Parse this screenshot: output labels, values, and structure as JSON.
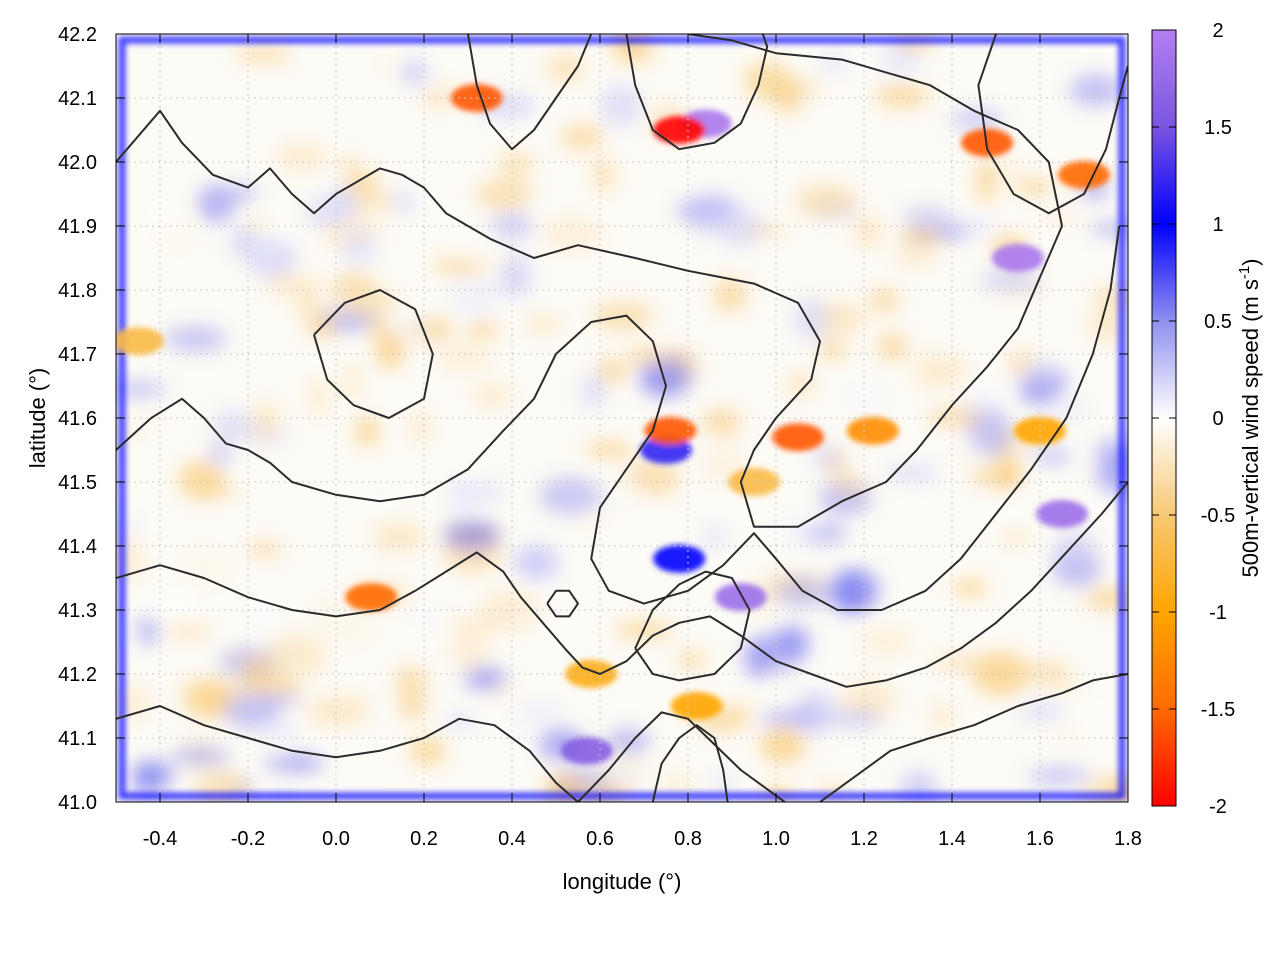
{
  "chart_data": {
    "type": "heatmap",
    "title": "",
    "xlabel": "longitude (°)",
    "ylabel": "latitude (°)",
    "xlim": [
      -0.5,
      1.8
    ],
    "ylim": [
      41.0,
      42.2
    ],
    "x_ticks": [
      "-0.4",
      "-0.2",
      "0.0",
      "0.2",
      "0.4",
      "0.6",
      "0.8",
      "1.0",
      "1.2",
      "1.4",
      "1.6",
      "1.8"
    ],
    "x_tick_values": [
      -0.4,
      -0.2,
      0.0,
      0.2,
      0.4,
      0.6,
      0.8,
      1.0,
      1.2,
      1.4,
      1.6,
      1.8
    ],
    "y_ticks": [
      "41.0",
      "41.1",
      "41.2",
      "41.3",
      "41.4",
      "41.5",
      "41.6",
      "41.7",
      "41.8",
      "41.9",
      "42.0",
      "42.1",
      "42.2"
    ],
    "y_tick_values": [
      41.0,
      41.1,
      41.2,
      41.3,
      41.4,
      41.5,
      41.6,
      41.7,
      41.8,
      41.9,
      42.0,
      42.1,
      42.2
    ],
    "grid": true,
    "colorbar": {
      "label_main": "500m-vertical wind speed (m s",
      "label_sup": "-1",
      "label_end": ")",
      "range": [
        -2,
        2
      ],
      "ticks": [
        "2",
        "1.5",
        "1",
        "0.5",
        "0",
        "-0.5",
        "-1",
        "-1.5",
        "-2"
      ],
      "tick_values": [
        2,
        1.5,
        1,
        0.5,
        0,
        -0.5,
        -1,
        -1.5,
        -2
      ],
      "colors": {
        "2": "#b37ff0",
        "1.5": "#7a55e0",
        "1": "#0000ff",
        "0.5": "#8f8fef",
        "0": "#ffffff",
        "-0.5": "#f7c874",
        "-1": "#ffa500",
        "-1.5": "#ff6a00",
        "-2": "#ff0000"
      }
    },
    "features": [
      {
        "kind": "updraft",
        "lon": 0.84,
        "lat": 42.06,
        "value": 1.9
      },
      {
        "kind": "updraft",
        "lon": 1.55,
        "lat": 41.85,
        "value": 1.9
      },
      {
        "kind": "updraft",
        "lon": 1.65,
        "lat": 41.45,
        "value": 1.8
      },
      {
        "kind": "updraft",
        "lon": 0.92,
        "lat": 41.32,
        "value": 1.8
      },
      {
        "kind": "updraft",
        "lon": 0.57,
        "lat": 41.08,
        "value": 1.6
      },
      {
        "kind": "updraft",
        "lon": 0.75,
        "lat": 41.55,
        "value": 1.2
      },
      {
        "kind": "updraft",
        "lon": 0.78,
        "lat": 41.38,
        "value": 1.0
      },
      {
        "kind": "downdraft",
        "lon": 0.78,
        "lat": 42.05,
        "value": -2.0
      },
      {
        "kind": "downdraft",
        "lon": 0.32,
        "lat": 42.1,
        "value": -1.6
      },
      {
        "kind": "downdraft",
        "lon": 1.7,
        "lat": 41.98,
        "value": -1.5
      },
      {
        "kind": "downdraft",
        "lon": 1.48,
        "lat": 42.03,
        "value": -1.6
      },
      {
        "kind": "downdraft",
        "lon": 0.76,
        "lat": 41.58,
        "value": -1.6
      },
      {
        "kind": "downdraft",
        "lon": 1.05,
        "lat": 41.57,
        "value": -1.6
      },
      {
        "kind": "downdraft",
        "lon": 0.95,
        "lat": 41.5,
        "value": -0.7
      },
      {
        "kind": "downdraft",
        "lon": 1.6,
        "lat": 41.58,
        "value": -1.0
      },
      {
        "kind": "downdraft",
        "lon": 1.22,
        "lat": 41.58,
        "value": -1.2
      },
      {
        "kind": "downdraft",
        "lon": 0.08,
        "lat": 41.32,
        "value": -1.5
      },
      {
        "kind": "downdraft",
        "lon": 0.82,
        "lat": 41.15,
        "value": -1.0
      },
      {
        "kind": "downdraft",
        "lon": 0.58,
        "lat": 41.2,
        "value": -0.9
      },
      {
        "kind": "downdraft",
        "lon": -0.45,
        "lat": 41.72,
        "value": -0.7
      }
    ],
    "contours": [
      [
        [
          -0.5,
          42.0
        ],
        [
          -0.4,
          42.08
        ],
        [
          -0.35,
          42.03
        ],
        [
          -0.28,
          41.98
        ],
        [
          -0.2,
          41.96
        ],
        [
          -0.15,
          41.99
        ],
        [
          -0.1,
          41.95
        ],
        [
          -0.05,
          41.92
        ],
        [
          0.0,
          41.95
        ],
        [
          0.05,
          41.97
        ],
        [
          0.1,
          41.99
        ],
        [
          0.15,
          41.98
        ],
        [
          0.2,
          41.96
        ],
        [
          0.25,
          41.92
        ],
        [
          0.35,
          41.88
        ],
        [
          0.45,
          41.85
        ],
        [
          0.55,
          41.87
        ],
        [
          0.68,
          41.85
        ],
        [
          0.8,
          41.83
        ],
        [
          0.95,
          41.81
        ],
        [
          1.05,
          41.78
        ],
        [
          1.1,
          41.72
        ],
        [
          1.08,
          41.66
        ],
        [
          1.0,
          41.6
        ],
        [
          0.95,
          41.55
        ],
        [
          0.92,
          41.5
        ],
        [
          0.95,
          41.43
        ],
        [
          1.05,
          41.43
        ],
        [
          1.15,
          41.47
        ],
        [
          1.25,
          41.5
        ],
        [
          1.32,
          41.55
        ],
        [
          1.4,
          41.62
        ],
        [
          1.48,
          41.68
        ],
        [
          1.55,
          41.74
        ],
        [
          1.6,
          41.82
        ],
        [
          1.65,
          41.9
        ],
        [
          1.62,
          42.0
        ],
        [
          1.55,
          42.05
        ],
        [
          1.45,
          42.08
        ],
        [
          1.35,
          42.12
        ],
        [
          1.25,
          42.14
        ],
        [
          1.15,
          42.16
        ],
        [
          1.0,
          42.17
        ],
        [
          0.9,
          42.19
        ],
        [
          0.8,
          42.2
        ]
      ],
      [
        [
          -0.5,
          41.55
        ],
        [
          -0.42,
          41.6
        ],
        [
          -0.35,
          41.63
        ],
        [
          -0.3,
          41.6
        ],
        [
          -0.25,
          41.56
        ],
        [
          -0.2,
          41.55
        ],
        [
          -0.15,
          41.53
        ],
        [
          -0.1,
          41.5
        ],
        [
          0.0,
          41.48
        ],
        [
          0.1,
          41.47
        ],
        [
          0.2,
          41.48
        ],
        [
          0.3,
          41.52
        ],
        [
          0.38,
          41.58
        ],
        [
          0.45,
          41.63
        ],
        [
          0.5,
          41.7
        ],
        [
          0.58,
          41.75
        ],
        [
          0.66,
          41.76
        ],
        [
          0.72,
          41.72
        ],
        [
          0.75,
          41.65
        ],
        [
          0.72,
          41.58
        ],
        [
          0.66,
          41.52
        ],
        [
          0.6,
          41.46
        ],
        [
          0.58,
          41.38
        ],
        [
          0.62,
          41.33
        ],
        [
          0.7,
          41.31
        ],
        [
          0.8,
          41.33
        ],
        [
          0.88,
          41.37
        ],
        [
          0.95,
          41.42
        ],
        [
          1.0,
          41.38
        ],
        [
          1.06,
          41.33
        ],
        [
          1.14,
          41.3
        ],
        [
          1.24,
          41.3
        ],
        [
          1.34,
          41.33
        ],
        [
          1.42,
          41.38
        ],
        [
          1.5,
          41.45
        ],
        [
          1.58,
          41.52
        ],
        [
          1.66,
          41.6
        ],
        [
          1.72,
          41.7
        ],
        [
          1.76,
          41.8
        ],
        [
          1.78,
          41.9
        ]
      ],
      [
        [
          -0.5,
          41.35
        ],
        [
          -0.4,
          41.37
        ],
        [
          -0.3,
          41.35
        ],
        [
          -0.2,
          41.32
        ],
        [
          -0.1,
          41.3
        ],
        [
          0.0,
          41.29
        ],
        [
          0.1,
          41.3
        ],
        [
          0.18,
          41.33
        ],
        [
          0.25,
          41.36
        ],
        [
          0.32,
          41.39
        ],
        [
          0.38,
          41.36
        ],
        [
          0.42,
          41.32
        ],
        [
          0.47,
          41.28
        ],
        [
          0.52,
          41.24
        ],
        [
          0.56,
          41.21
        ],
        [
          0.6,
          41.2
        ],
        [
          0.66,
          41.22
        ],
        [
          0.72,
          41.26
        ],
        [
          0.78,
          41.28
        ],
        [
          0.85,
          41.29
        ],
        [
          0.92,
          41.26
        ],
        [
          1.0,
          41.22
        ],
        [
          1.08,
          41.2
        ],
        [
          1.16,
          41.18
        ],
        [
          1.25,
          41.19
        ],
        [
          1.34,
          41.21
        ],
        [
          1.42,
          41.24
        ],
        [
          1.5,
          41.28
        ],
        [
          1.58,
          41.33
        ],
        [
          1.66,
          41.39
        ],
        [
          1.74,
          41.45
        ],
        [
          1.8,
          41.5
        ]
      ],
      [
        [
          -0.5,
          41.13
        ],
        [
          -0.4,
          41.15
        ],
        [
          -0.3,
          41.12
        ],
        [
          -0.2,
          41.1
        ],
        [
          -0.1,
          41.08
        ],
        [
          0.0,
          41.07
        ],
        [
          0.1,
          41.08
        ],
        [
          0.2,
          41.1
        ],
        [
          0.28,
          41.13
        ],
        [
          0.36,
          41.12
        ],
        [
          0.44,
          41.08
        ],
        [
          0.5,
          41.03
        ],
        [
          0.55,
          41.0
        ]
      ],
      [
        [
          0.55,
          41.0
        ],
        [
          0.62,
          41.05
        ],
        [
          0.68,
          41.1
        ],
        [
          0.74,
          41.14
        ],
        [
          0.8,
          41.13
        ],
        [
          0.86,
          41.09
        ],
        [
          0.92,
          41.05
        ],
        [
          0.98,
          41.02
        ],
        [
          1.02,
          41.0
        ]
      ],
      [
        [
          1.1,
          41.0
        ],
        [
          1.18,
          41.04
        ],
        [
          1.26,
          41.08
        ],
        [
          1.35,
          41.1
        ],
        [
          1.45,
          41.12
        ],
        [
          1.55,
          41.15
        ],
        [
          1.65,
          41.17
        ],
        [
          1.72,
          41.19
        ],
        [
          1.8,
          41.2
        ]
      ],
      [
        [
          0.3,
          42.2
        ],
        [
          0.32,
          42.12
        ],
        [
          0.35,
          42.06
        ],
        [
          0.4,
          42.02
        ],
        [
          0.45,
          42.05
        ],
        [
          0.5,
          42.1
        ],
        [
          0.55,
          42.15
        ],
        [
          0.58,
          42.2
        ]
      ],
      [
        [
          0.66,
          42.2
        ],
        [
          0.68,
          42.12
        ],
        [
          0.72,
          42.05
        ],
        [
          0.78,
          42.02
        ],
        [
          0.86,
          42.03
        ],
        [
          0.92,
          42.06
        ],
        [
          0.96,
          42.12
        ],
        [
          0.98,
          42.18
        ],
        [
          0.97,
          42.2
        ]
      ],
      [
        [
          1.5,
          42.2
        ],
        [
          1.46,
          42.12
        ],
        [
          1.48,
          42.02
        ],
        [
          1.54,
          41.95
        ],
        [
          1.62,
          41.92
        ],
        [
          1.7,
          41.95
        ],
        [
          1.75,
          42.02
        ],
        [
          1.78,
          42.1
        ],
        [
          1.8,
          42.15
        ]
      ],
      [
        [
          0.68,
          41.24
        ],
        [
          0.72,
          41.3
        ],
        [
          0.78,
          41.34
        ],
        [
          0.84,
          41.36
        ],
        [
          0.9,
          41.35
        ],
        [
          0.94,
          41.3
        ],
        [
          0.92,
          41.24
        ],
        [
          0.86,
          41.2
        ],
        [
          0.78,
          41.19
        ],
        [
          0.72,
          41.2
        ],
        [
          0.68,
          41.24
        ]
      ],
      [
        [
          0.72,
          41.0
        ],
        [
          0.74,
          41.06
        ],
        [
          0.78,
          41.1
        ],
        [
          0.82,
          41.12
        ],
        [
          0.86,
          41.1
        ],
        [
          0.88,
          41.05
        ],
        [
          0.89,
          41.0
        ]
      ],
      [
        [
          -0.05,
          41.73
        ],
        [
          0.02,
          41.78
        ],
        [
          0.1,
          41.8
        ],
        [
          0.18,
          41.77
        ],
        [
          0.22,
          41.7
        ],
        [
          0.2,
          41.63
        ],
        [
          0.12,
          41.6
        ],
        [
          0.04,
          41.62
        ],
        [
          -0.02,
          41.66
        ],
        [
          -0.05,
          41.73
        ]
      ],
      [
        [
          0.48,
          41.31
        ],
        [
          0.5,
          41.33
        ],
        [
          0.53,
          41.33
        ],
        [
          0.55,
          41.31
        ],
        [
          0.53,
          41.29
        ],
        [
          0.5,
          41.29
        ],
        [
          0.48,
          41.31
        ]
      ]
    ]
  }
}
